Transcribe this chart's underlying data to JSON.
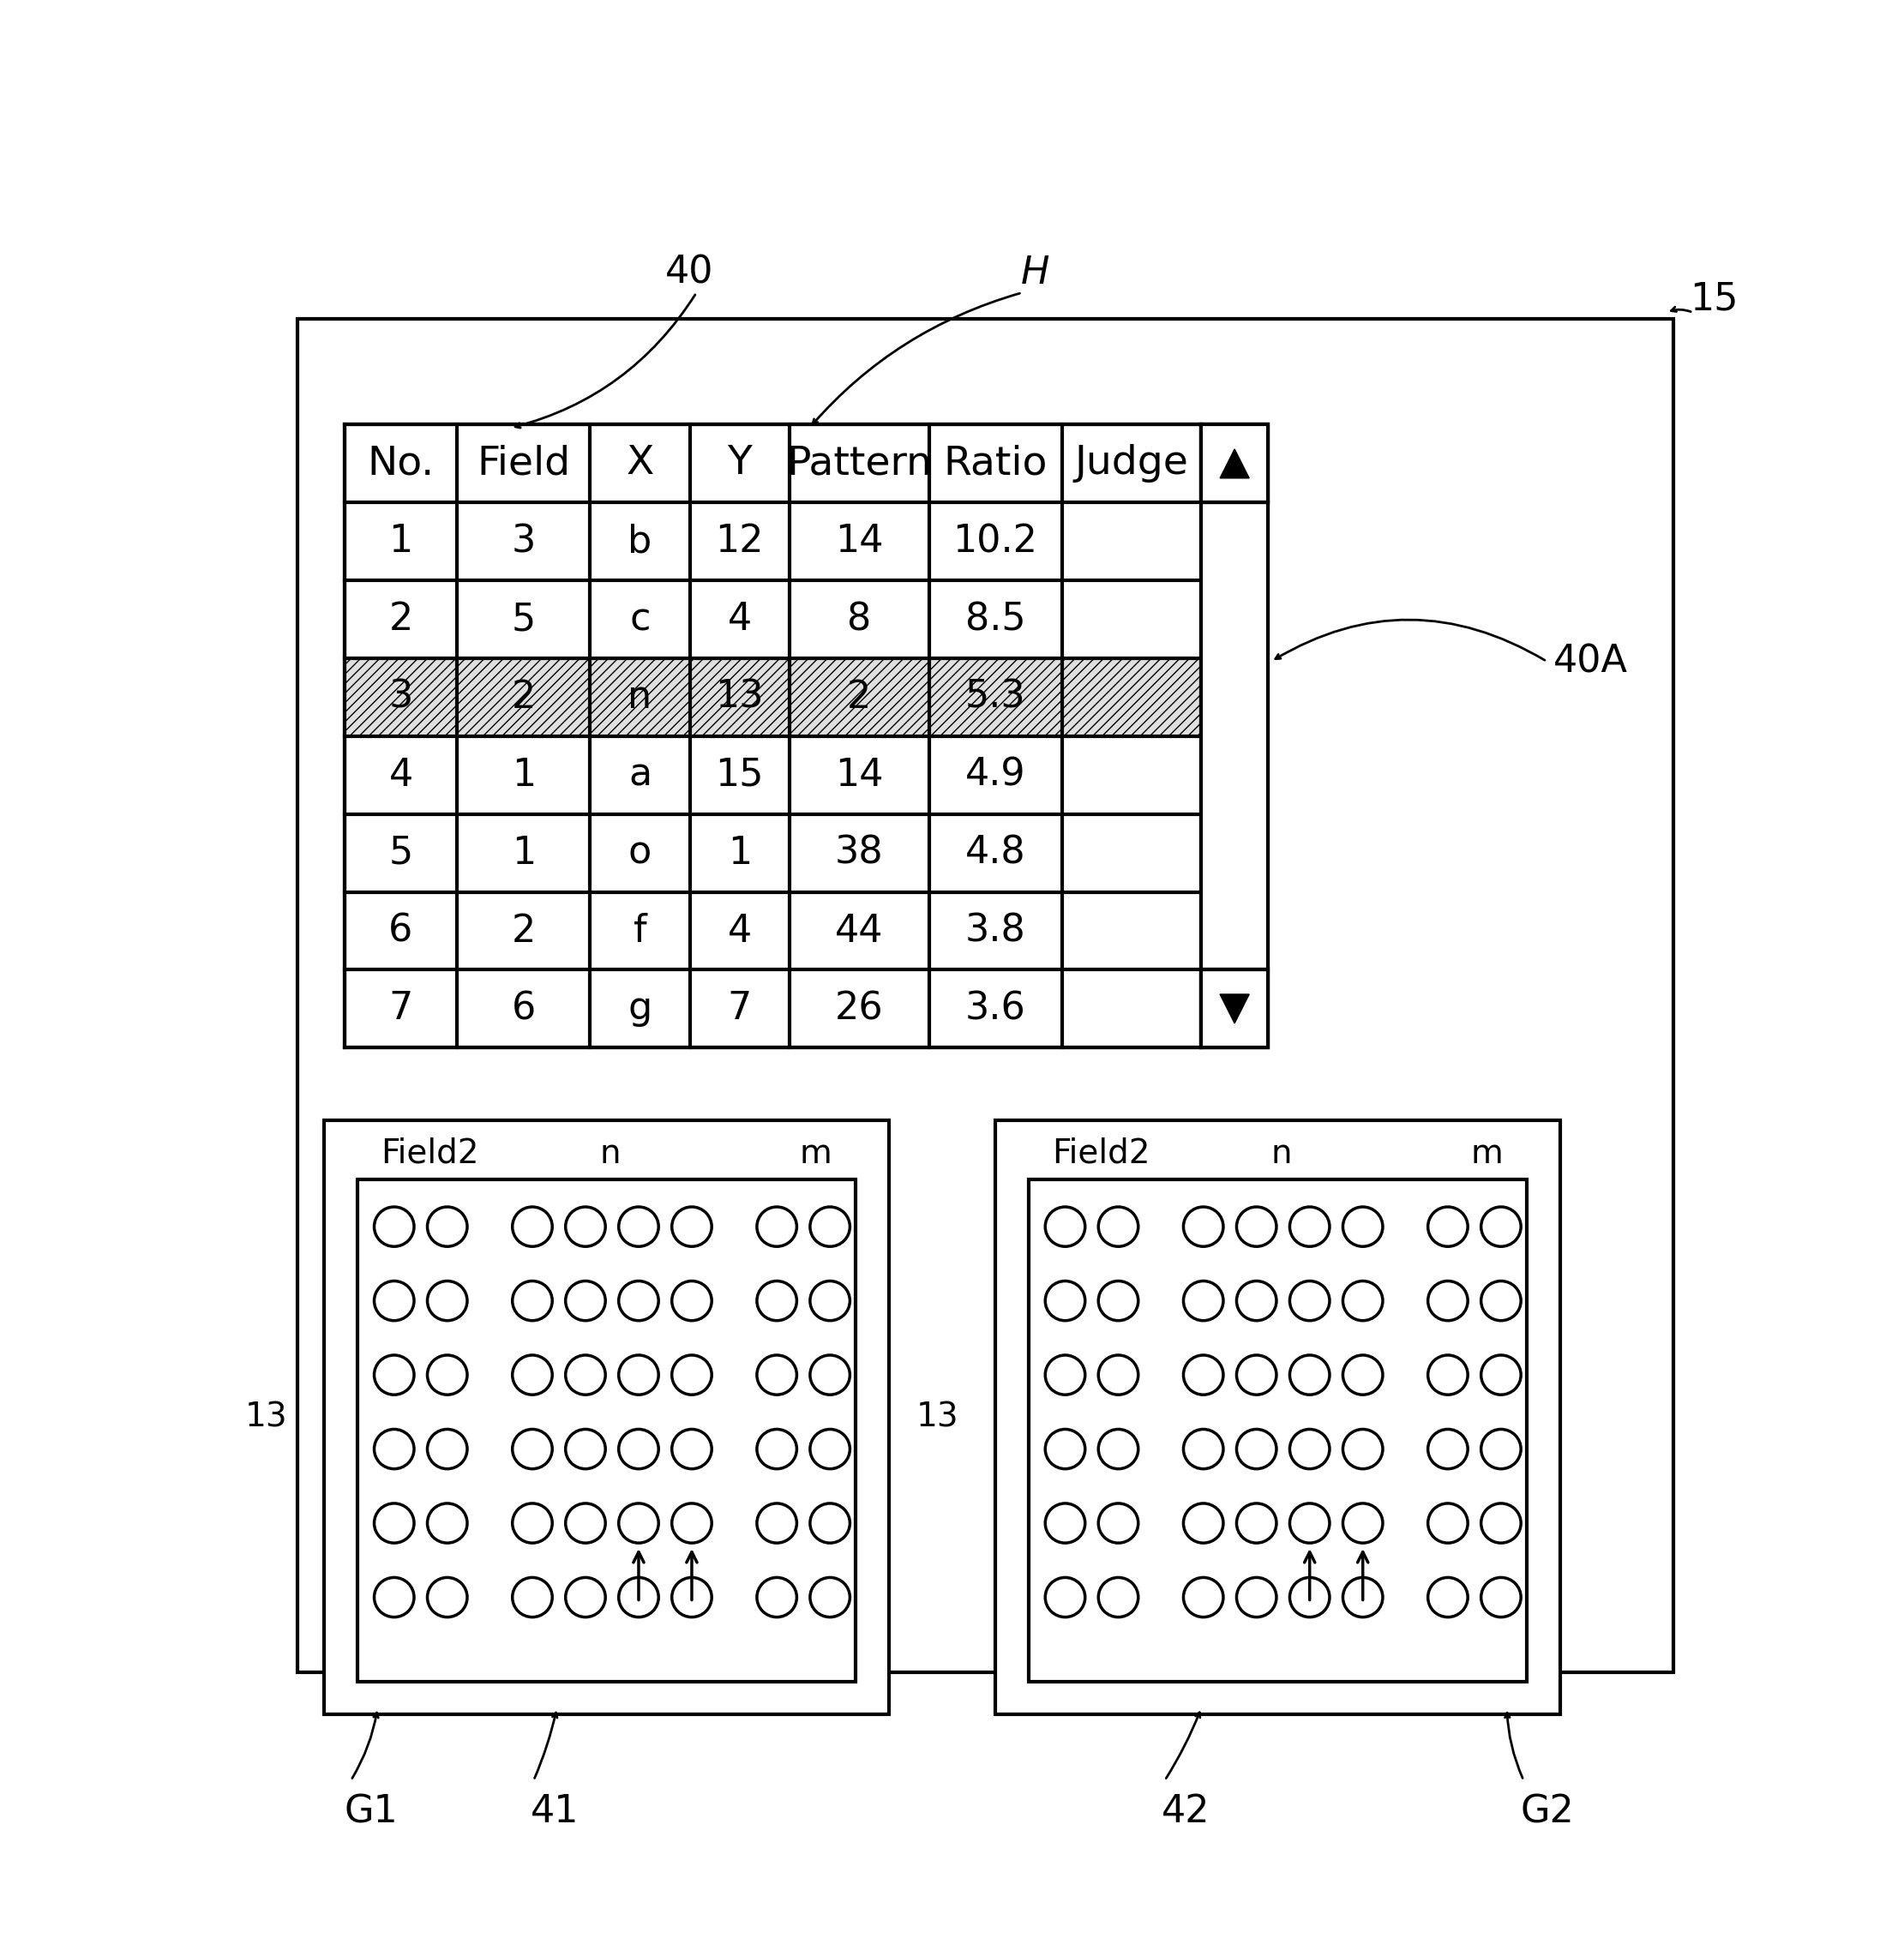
{
  "outer_box_label": "15",
  "table_label": "40",
  "H_label": "H",
  "scrollbar_label": "40A",
  "table_headers": [
    "No.",
    "Field",
    "X",
    "Y",
    "Pattern",
    "Ratio",
    "Judge"
  ],
  "table_rows": [
    [
      "1",
      "3",
      "b",
      "12",
      "14",
      "10.2",
      ""
    ],
    [
      "2",
      "5",
      "c",
      "4",
      "8",
      "8.5",
      ""
    ],
    [
      "3",
      "2",
      "n",
      "13",
      "2",
      "5.3",
      ""
    ],
    [
      "4",
      "1",
      "a",
      "15",
      "14",
      "4.9",
      ""
    ],
    [
      "5",
      "1",
      "o",
      "1",
      "38",
      "4.8",
      ""
    ],
    [
      "6",
      "2",
      "f",
      "4",
      "44",
      "3.8",
      ""
    ],
    [
      "7",
      "6",
      "g",
      "7",
      "26",
      "3.6",
      ""
    ]
  ],
  "highlighted_row_idx": 2,
  "panel1_label": "G1",
  "panel2_label": "G2",
  "panel1_sublabel": "41",
  "panel2_sublabel": "42",
  "panel_field_label": "Field2",
  "panel_n_label": "n",
  "panel_m_label": "m",
  "panel_side_label": "13",
  "bg_color": "#ffffff"
}
